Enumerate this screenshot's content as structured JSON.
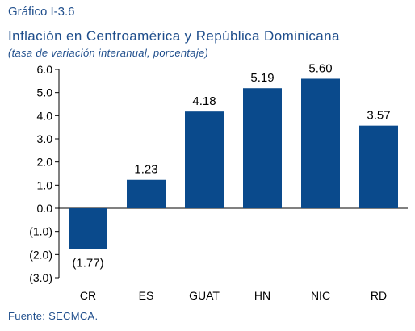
{
  "figure_label": "Gráfico I-3.6",
  "source": "Fuente: SECMCA.",
  "chart_data": {
    "type": "bar",
    "title": "Inflación en Centroamérica y República Dominicana",
    "subtitle": "(tasa de variación interanual, porcentaje)",
    "categories": [
      "CR",
      "ES",
      "GUAT",
      "HN",
      "NIC",
      "RD"
    ],
    "values": [
      -1.77,
      1.23,
      4.18,
      5.19,
      5.6,
      3.57
    ],
    "value_labels": [
      "(1.77)",
      "1.23",
      "4.18",
      "5.19",
      "5.60",
      "3.57"
    ],
    "ylim": [
      -3.0,
      6.0
    ],
    "yticks": [
      6.0,
      5.0,
      4.0,
      3.0,
      2.0,
      1.0,
      0.0,
      -1.0,
      -2.0,
      -3.0
    ],
    "ytick_labels": [
      "6.0",
      "5.0",
      "4.0",
      "3.0",
      "2.0",
      "1.0",
      "0.0",
      "(1.0)",
      "(2.0)",
      "(3.0)"
    ],
    "xlabel": "",
    "ylabel": "",
    "grid": false,
    "legend": "none",
    "bar_color": "#0a4a8c"
  }
}
